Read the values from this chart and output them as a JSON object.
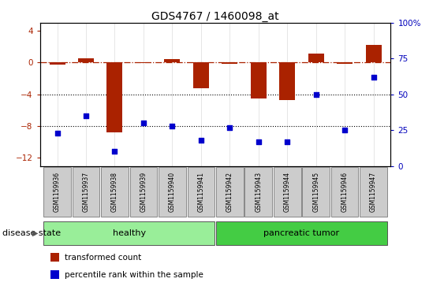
{
  "title": "GDS4767 / 1460098_at",
  "samples": [
    "GSM1159936",
    "GSM1159937",
    "GSM1159938",
    "GSM1159939",
    "GSM1159940",
    "GSM1159941",
    "GSM1159942",
    "GSM1159943",
    "GSM1159944",
    "GSM1159945",
    "GSM1159946",
    "GSM1159947"
  ],
  "bar_values": [
    -0.3,
    0.5,
    -8.8,
    -0.1,
    0.4,
    -3.2,
    -0.2,
    -4.5,
    -4.7,
    1.1,
    -0.2,
    2.2
  ],
  "scatter_values": [
    23,
    35,
    10,
    30,
    28,
    18,
    27,
    17,
    17,
    50,
    25,
    62
  ],
  "bar_color": "#AA2200",
  "scatter_color": "#0000CC",
  "ylim_left": [
    -13,
    5
  ],
  "ylim_right": [
    0,
    100
  ],
  "dotted_lines": [
    -4,
    -8
  ],
  "right_ticks": [
    0,
    25,
    50,
    75,
    100
  ],
  "right_tick_labels": [
    "0",
    "25",
    "50",
    "75",
    "100%"
  ],
  "left_ticks": [
    -12,
    -8,
    -4,
    0,
    4
  ],
  "healthy_count": 6,
  "tumor_count": 6,
  "group_healthy_label": "healthy",
  "group_tumor_label": "pancreatic tumor",
  "disease_state_label": "disease state",
  "legend_bar_label": "transformed count",
  "legend_scatter_label": "percentile rank within the sample",
  "group_color_healthy": "#99EE99",
  "group_color_tumor": "#44CC44",
  "sample_label_bg": "#CCCCCC",
  "bg_color": "#FFFFFF"
}
